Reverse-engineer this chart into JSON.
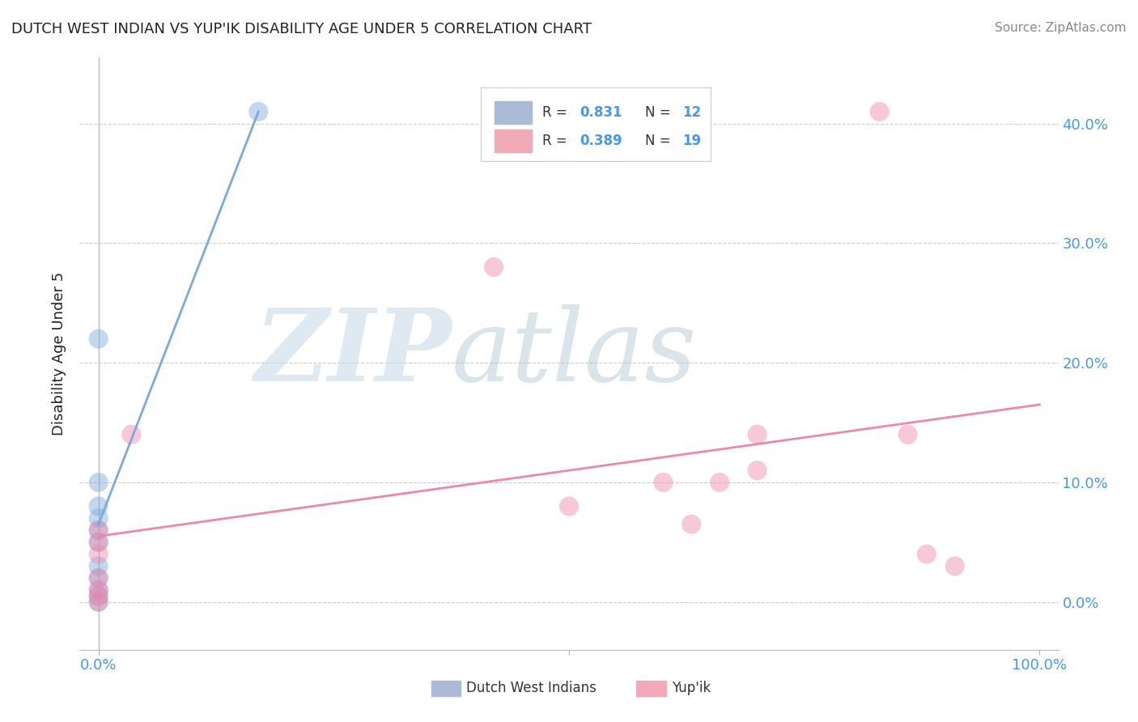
{
  "title": "DUTCH WEST INDIAN VS YUP'IK DISABILITY AGE UNDER 5 CORRELATION CHART",
  "source": "Source: ZipAtlas.com",
  "ylabel": "Disability Age Under 5",
  "background_color": "#ffffff",
  "blue_color": "#7aaadd",
  "pink_color": "#ee88aa",
  "blue_scatter": [
    [
      0.0,
      0.0
    ],
    [
      0.0,
      0.005
    ],
    [
      0.0,
      0.01
    ],
    [
      0.0,
      0.02
    ],
    [
      0.0,
      0.03
    ],
    [
      0.0,
      0.05
    ],
    [
      0.0,
      0.06
    ],
    [
      0.0,
      0.07
    ],
    [
      0.0,
      0.08
    ],
    [
      0.0,
      0.1
    ],
    [
      0.0,
      0.22
    ],
    [
      0.17,
      0.41
    ]
  ],
  "pink_scatter": [
    [
      0.0,
      0.0
    ],
    [
      0.0,
      0.005
    ],
    [
      0.0,
      0.01
    ],
    [
      0.0,
      0.02
    ],
    [
      0.0,
      0.04
    ],
    [
      0.0,
      0.05
    ],
    [
      0.0,
      0.06
    ],
    [
      0.035,
      0.14
    ],
    [
      0.5,
      0.08
    ],
    [
      0.6,
      0.1
    ],
    [
      0.63,
      0.065
    ],
    [
      0.66,
      0.1
    ],
    [
      0.7,
      0.11
    ],
    [
      0.7,
      0.14
    ],
    [
      0.83,
      0.41
    ],
    [
      0.86,
      0.14
    ],
    [
      0.88,
      0.04
    ],
    [
      0.91,
      0.03
    ],
    [
      0.42,
      0.28
    ]
  ],
  "blue_line_x": [
    0.0,
    0.17
  ],
  "blue_line_y": [
    0.065,
    0.41
  ],
  "pink_line_x": [
    0.0,
    1.0
  ],
  "pink_line_y": [
    0.055,
    0.165
  ],
  "ytick_positions": [
    0.0,
    0.1,
    0.2,
    0.3,
    0.4
  ],
  "ytick_labels_right": [
    "0.0%",
    "10.0%",
    "20.0%",
    "30.0%",
    "40.0%"
  ],
  "xtick_positions": [
    0.0,
    0.5,
    1.0
  ],
  "xtick_labels": [
    "0.0%",
    "",
    "100.0%"
  ],
  "xlim": [
    -0.02,
    1.02
  ],
  "ylim": [
    -0.04,
    0.455
  ]
}
